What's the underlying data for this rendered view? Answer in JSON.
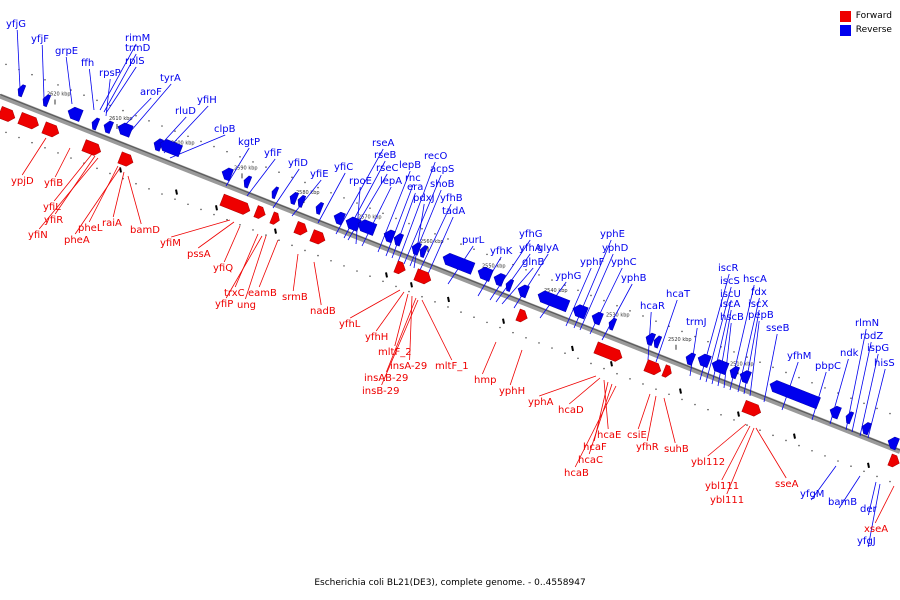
{
  "legend": [
    {
      "label": "Forward",
      "color": "#ee0000"
    },
    {
      "label": "Reverse",
      "color": "#0000ee"
    }
  ],
  "caption": "Escherichia coli BL21(DE3), complete genome. - 0..4558947",
  "ticks": [
    "2620 kbp",
    "2610 kbp",
    "2600 kbp",
    "2590 kbp",
    "2580 kbp",
    "2570 kbp",
    "2560 kbp",
    "2550 kbp",
    "2540 kbp",
    "2530 kbp",
    "2520 kbp",
    "2510 kbp"
  ],
  "reverse_genes": [
    "yfjG",
    "yfjF",
    "grpE",
    "ffh",
    "rimM",
    "trmD",
    "rplS",
    "rpsP",
    "aroF",
    "tyrA",
    "rluD",
    "yfiH",
    "clpB",
    "kgtP",
    "yfiF",
    "yfiD",
    "yfiE",
    "yfiC",
    "rseA",
    "rseB",
    "rseC",
    "rpoE",
    "lepA",
    "lepB",
    "rnc",
    "era",
    "recO",
    "acpS",
    "shoB",
    "pdxJ",
    "yfhB",
    "tadA",
    "purL",
    "yfhK",
    "yfhG",
    "yfhA",
    "glnB",
    "glyA",
    "yphG",
    "yphF",
    "yphE",
    "yphD",
    "yphC",
    "yphB",
    "hcaR",
    "hcaT",
    "trmJ",
    "iscR",
    "iscS",
    "iscU",
    "iscA",
    "hscB",
    "hscA",
    "fdx",
    "iscX",
    "pepB",
    "sseB",
    "yfhM",
    "pbpC",
    "ndk",
    "rlmN",
    "rodZ",
    "ispG",
    "hisS",
    "yfgM",
    "bamB",
    "der",
    "yfgJ"
  ],
  "forward_genes": [
    "ypjD",
    "yfiB",
    "yfiL",
    "yfiR",
    "yfiN",
    "pheL",
    "pheA",
    "raiA",
    "bamD",
    "yfiM",
    "pssA",
    "yfiQ",
    "trxC",
    "yfiP",
    "ung",
    "eamB",
    "srmB",
    "nadB",
    "yfhL",
    "yfhH",
    "mltF_2",
    "insA-29",
    "mltF_1",
    "insAB-29",
    "insB-29",
    "hmp",
    "yphH",
    "yphA",
    "hcaD",
    "hcaE",
    "hcaF",
    "hcaC",
    "hcaB",
    "csiE",
    "yfhR",
    "suhB",
    "ybl112",
    "ybl111",
    "ybl111",
    "sseA",
    "xseA"
  ]
}
